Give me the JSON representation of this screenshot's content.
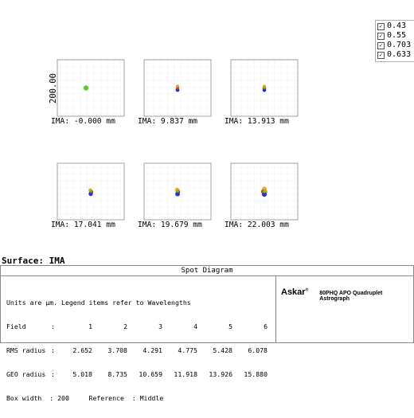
{
  "legend": {
    "items": [
      {
        "label": "0.43",
        "color": "#2b33c8"
      },
      {
        "label": "0.55",
        "color": "#5ecb2c"
      },
      {
        "label": "0.703",
        "color": "#e0342a"
      },
      {
        "label": "0.633",
        "color": "#f2a81c"
      }
    ]
  },
  "spots": {
    "scale_label": "200.00",
    "fields": [
      {
        "ima_label": "IMA: -0.000 mm"
      },
      {
        "ima_label": "IMA: 9.837 mm"
      },
      {
        "ima_label": "IMA: 13.913 mm"
      },
      {
        "ima_label": "IMA: 17.041 mm"
      },
      {
        "ima_label": "IMA: 19.679 mm"
      },
      {
        "ima_label": "IMA: 22.003 mm"
      }
    ]
  },
  "surface_label": "Surface: IMA",
  "panel": {
    "title": "Spot Diagram",
    "units_line": "Units are µm. Legend items refer to Wavelengths",
    "rows": [
      {
        "label": "Field",
        "values": [
          "1",
          "2",
          "3",
          "4",
          "5",
          "6"
        ]
      },
      {
        "label": "RMS radius",
        "values": [
          "2.652",
          "3.708",
          "4.291",
          "4.775",
          "5.428",
          "6.078"
        ]
      },
      {
        "label": "GEO radius",
        "values": [
          "5.018",
          "8.735",
          "10.659",
          "11.918",
          "13.926",
          "15.880"
        ]
      }
    ],
    "box_width_line": "Box width  : 200     Reference  : Middle",
    "brand": "Askar",
    "brand_mark": "®",
    "model": "80PHQ APO Quadruplet Astrograph"
  }
}
